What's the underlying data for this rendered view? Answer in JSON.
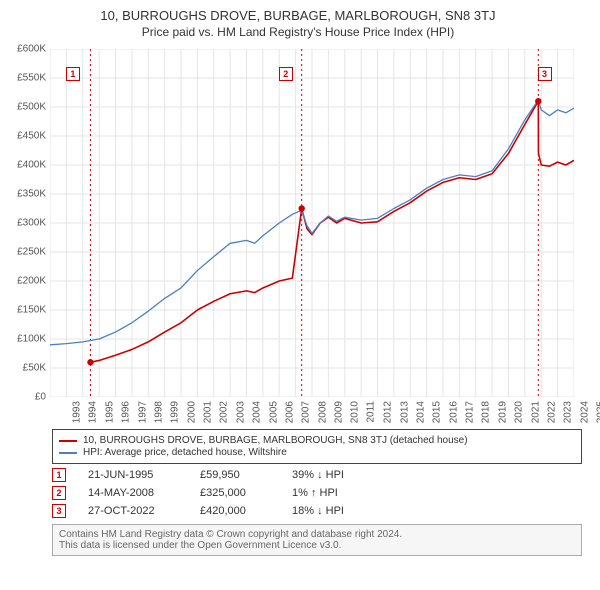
{
  "title": "10, BURROUGHS DROVE, BURBAGE, MARLBOROUGH, SN8 3TJ",
  "subtitle": "Price paid vs. HM Land Registry's House Price Index (HPI)",
  "chart": {
    "type": "line",
    "background_color": "#ffffff",
    "grid_color": "#e5e5e5",
    "axis_color": "#888888",
    "y": {
      "min": 0,
      "max": 600000,
      "step": 50000,
      "prefix": "£",
      "suffix": "K",
      "divisor": 1000,
      "label_fontsize": 10,
      "label_color": "#555555"
    },
    "x": {
      "min": 1993,
      "max": 2025,
      "step": 1,
      "label_fontsize": 10,
      "label_color": "#555555"
    },
    "markers": [
      {
        "n": "1",
        "year": 1995.47,
        "box_year": 1994.4
      },
      {
        "n": "2",
        "year": 2008.37,
        "box_year": 2007.4
      },
      {
        "n": "3",
        "year": 2022.82,
        "box_year": 2023.2
      }
    ],
    "marker_line_color": "#cc0000",
    "marker_box_border": "#cc0000",
    "series": [
      {
        "name": "property",
        "color": "#cc0000",
        "width": 1.6,
        "points": [
          [
            1995.47,
            59950
          ],
          [
            1996,
            63000
          ],
          [
            1997,
            72000
          ],
          [
            1998,
            82000
          ],
          [
            1999,
            95000
          ],
          [
            2000,
            112000
          ],
          [
            2001,
            128000
          ],
          [
            2002,
            150000
          ],
          [
            2003,
            165000
          ],
          [
            2004,
            178000
          ],
          [
            2005,
            183000
          ],
          [
            2005.5,
            180000
          ],
          [
            2006,
            188000
          ],
          [
            2007,
            200000
          ],
          [
            2007.8,
            205000
          ],
          [
            2008.37,
            325000
          ],
          [
            2008.7,
            290000
          ],
          [
            2009,
            280000
          ],
          [
            2009.5,
            300000
          ],
          [
            2010,
            310000
          ],
          [
            2010.5,
            300000
          ],
          [
            2011,
            308000
          ],
          [
            2012,
            300000
          ],
          [
            2013,
            302000
          ],
          [
            2014,
            320000
          ],
          [
            2015,
            335000
          ],
          [
            2016,
            355000
          ],
          [
            2017,
            370000
          ],
          [
            2018,
            378000
          ],
          [
            2019,
            375000
          ],
          [
            2020,
            385000
          ],
          [
            2021,
            420000
          ],
          [
            2022,
            470000
          ],
          [
            2022.82,
            510000
          ],
          [
            2022.83,
            420000
          ],
          [
            2023,
            400000
          ],
          [
            2023.5,
            398000
          ],
          [
            2024,
            405000
          ],
          [
            2024.5,
            400000
          ],
          [
            2025,
            408000
          ]
        ]
      },
      {
        "name": "hpi",
        "color": "#4a7fc4",
        "width": 1.3,
        "points": [
          [
            1993,
            90000
          ],
          [
            1994,
            92000
          ],
          [
            1995,
            95000
          ],
          [
            1996,
            100000
          ],
          [
            1997,
            112000
          ],
          [
            1998,
            128000
          ],
          [
            1999,
            148000
          ],
          [
            2000,
            170000
          ],
          [
            2001,
            188000
          ],
          [
            2002,
            218000
          ],
          [
            2003,
            242000
          ],
          [
            2004,
            265000
          ],
          [
            2005,
            270000
          ],
          [
            2005.5,
            265000
          ],
          [
            2006,
            278000
          ],
          [
            2007,
            300000
          ],
          [
            2007.8,
            315000
          ],
          [
            2008.37,
            322000
          ],
          [
            2008.7,
            295000
          ],
          [
            2009,
            282000
          ],
          [
            2009.5,
            300000
          ],
          [
            2010,
            312000
          ],
          [
            2010.5,
            303000
          ],
          [
            2011,
            310000
          ],
          [
            2012,
            305000
          ],
          [
            2013,
            308000
          ],
          [
            2014,
            325000
          ],
          [
            2015,
            340000
          ],
          [
            2016,
            360000
          ],
          [
            2017,
            375000
          ],
          [
            2018,
            383000
          ],
          [
            2019,
            380000
          ],
          [
            2020,
            390000
          ],
          [
            2021,
            428000
          ],
          [
            2022,
            478000
          ],
          [
            2022.82,
            512000
          ],
          [
            2023,
            495000
          ],
          [
            2023.5,
            485000
          ],
          [
            2024,
            495000
          ],
          [
            2024.5,
            490000
          ],
          [
            2025,
            498000
          ]
        ]
      }
    ]
  },
  "legend": {
    "items": [
      {
        "color": "#cc0000",
        "label": "10, BURROUGHS DROVE, BURBAGE, MARLBOROUGH, SN8 3TJ (detached house)"
      },
      {
        "color": "#4a7fc4",
        "label": "HPI: Average price, detached house, Wiltshire"
      }
    ]
  },
  "sales": [
    {
      "n": "1",
      "date": "21-JUN-1995",
      "price": "£59,950",
      "diff": "39% ↓ HPI"
    },
    {
      "n": "2",
      "date": "14-MAY-2008",
      "price": "£325,000",
      "diff": "1% ↑ HPI"
    },
    {
      "n": "3",
      "date": "27-OCT-2022",
      "price": "£420,000",
      "diff": "18% ↓ HPI"
    }
  ],
  "footer": {
    "line1": "Contains HM Land Registry data © Crown copyright and database right 2024.",
    "line2": "This data is licensed under the Open Government Licence v3.0."
  }
}
